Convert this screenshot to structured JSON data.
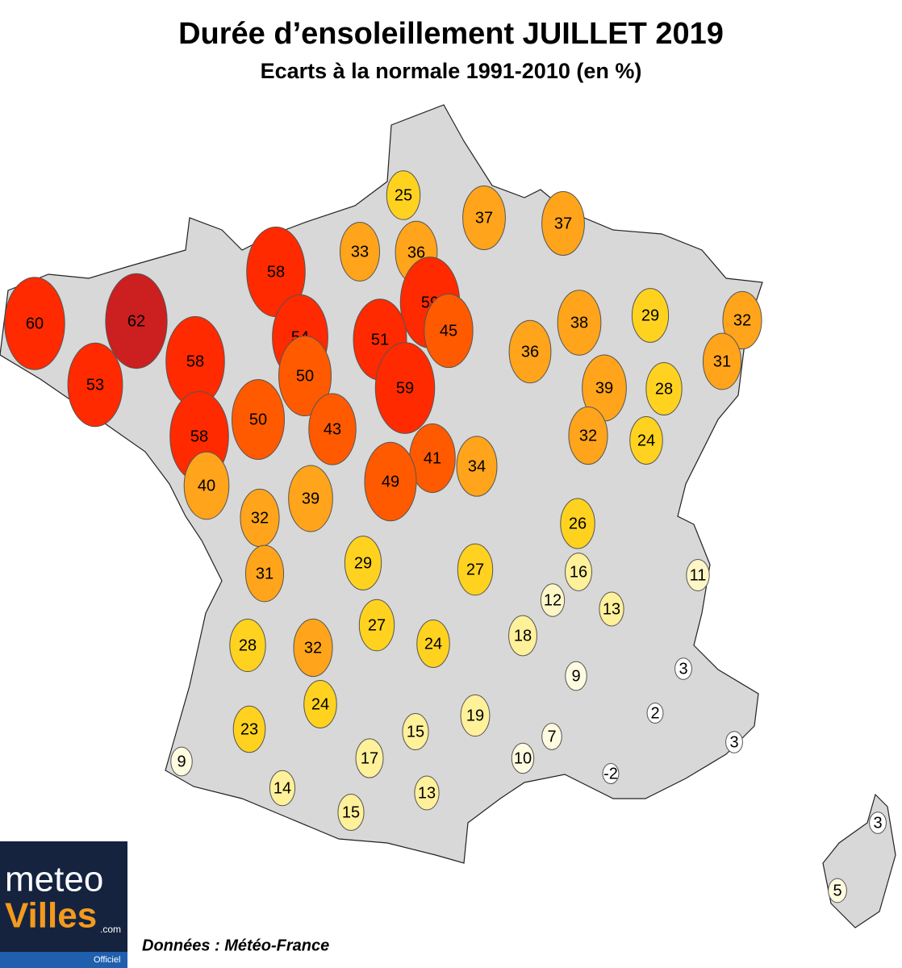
{
  "header": {
    "title": "Durée d’ensoleillement JUILLET 2019",
    "subtitle": "Ecarts à la normale 1991-2010 (en %)"
  },
  "map_data": {
    "points": [
      {
        "value": 25,
        "color": "#ffd21f"
      },
      {
        "value": 37,
        "color": "#ffa41b"
      },
      {
        "value": 37,
        "color": "#ffa41b"
      },
      {
        "value": 33,
        "color": "#ffa41b"
      },
      {
        "value": 36,
        "color": "#ffa41b"
      },
      {
        "value": 58,
        "color": "#ff2a00"
      },
      {
        "value": 59,
        "color": "#ff2a00"
      },
      {
        "value": 60,
        "color": "#ff2a00"
      },
      {
        "value": 62,
        "color": "#cc1f1f"
      },
      {
        "value": 54,
        "color": "#ff2a00"
      },
      {
        "value": 45,
        "color": "#ff5a00"
      },
      {
        "value": 51,
        "color": "#ff2a00"
      },
      {
        "value": 38,
        "color": "#ffa41b"
      },
      {
        "value": 29,
        "color": "#ffd21f"
      },
      {
        "value": 32,
        "color": "#ffa41b"
      },
      {
        "value": 36,
        "color": "#ffa41b"
      },
      {
        "value": 58,
        "color": "#ff2a00"
      },
      {
        "value": 50,
        "color": "#ff5a00"
      },
      {
        "value": 31,
        "color": "#ffa41b"
      },
      {
        "value": 53,
        "color": "#ff2a00"
      },
      {
        "value": 59,
        "color": "#ff2a00"
      },
      {
        "value": 39,
        "color": "#ffa41b"
      },
      {
        "value": 28,
        "color": "#ffd21f"
      },
      {
        "value": 50,
        "color": "#ff5a00"
      },
      {
        "value": 43,
        "color": "#ff5a00"
      },
      {
        "value": 58,
        "color": "#ff2a00"
      },
      {
        "value": 32,
        "color": "#ffa41b"
      },
      {
        "value": 24,
        "color": "#ffd21f"
      },
      {
        "value": 41,
        "color": "#ff5a00"
      },
      {
        "value": 34,
        "color": "#ffa41b"
      },
      {
        "value": 49,
        "color": "#ff5a00"
      },
      {
        "value": 40,
        "color": "#ffa41b"
      },
      {
        "value": 39,
        "color": "#ffa41b"
      },
      {
        "value": 32,
        "color": "#ffa41b"
      },
      {
        "value": 26,
        "color": "#ffd21f"
      },
      {
        "value": 29,
        "color": "#ffd21f"
      },
      {
        "value": 27,
        "color": "#ffd21f"
      },
      {
        "value": 16,
        "color": "#fff09a"
      },
      {
        "value": 11,
        "color": "#fff6c8"
      },
      {
        "value": 31,
        "color": "#ffa41b"
      },
      {
        "value": 12,
        "color": "#fff6c8"
      },
      {
        "value": 13,
        "color": "#fff09a"
      },
      {
        "value": 27,
        "color": "#ffd21f"
      },
      {
        "value": 18,
        "color": "#fff09a"
      },
      {
        "value": 28,
        "color": "#ffd21f"
      },
      {
        "value": 32,
        "color": "#ffa41b"
      },
      {
        "value": 24,
        "color": "#ffd21f"
      },
      {
        "value": 3,
        "color": "#ffffff"
      },
      {
        "value": 9,
        "color": "#fffbe0"
      },
      {
        "value": 24,
        "color": "#ffd21f"
      },
      {
        "value": 19,
        "color": "#fff09a"
      },
      {
        "value": 2,
        "color": "#ffffff"
      },
      {
        "value": 23,
        "color": "#ffd21f"
      },
      {
        "value": 15,
        "color": "#fff09a"
      },
      {
        "value": 7,
        "color": "#fffbe0"
      },
      {
        "value": 3,
        "color": "#ffffff"
      },
      {
        "value": 9,
        "color": "#fffbe0"
      },
      {
        "value": 17,
        "color": "#fff09a"
      },
      {
        "value": 10,
        "color": "#fffbe0"
      },
      {
        "value": -2,
        "color": "#ffffff"
      },
      {
        "value": 14,
        "color": "#fff09a"
      },
      {
        "value": 13,
        "color": "#fff09a"
      },
      {
        "value": 15,
        "color": "#fff09a"
      },
      {
        "value": 3,
        "color": "#ffffff"
      },
      {
        "value": 5,
        "color": "#fffbe0"
      }
    ]
  },
  "source": "Données : Météo-France",
  "logo": {
    "meteo": "meteo",
    "villes": "Villes",
    "com": ".com",
    "officiel": "Officiel"
  }
}
